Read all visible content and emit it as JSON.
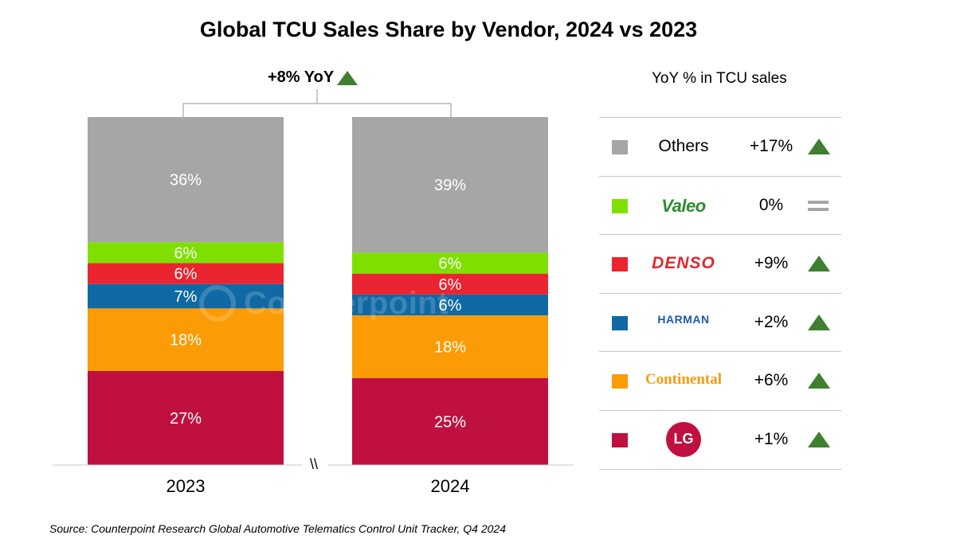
{
  "title": "Global TCU Sales Share by Vendor, 2024 vs 2023",
  "overall_yoy": "+8% YoY",
  "legend_header": "YoY % in TCU sales",
  "break_mark": "\\\\",
  "source": "Source: Counterpoint Research Global Automotive Telematics Control Unit Tracker, Q4 2024",
  "watermark": "Counterpoint",
  "colors": {
    "Others": "#a6a6a6",
    "Valeo": "#7fe000",
    "DENSO": "#ea2430",
    "HARMAN": "#1069a4",
    "Continental": "#fb9b06",
    "LG": "#c0103f",
    "up": "#3f7f2f",
    "flat": "#a6a6a6"
  },
  "legend": [
    {
      "vendor": "Others",
      "name": "Others",
      "yoy": "+17%",
      "trend": "up"
    },
    {
      "vendor": "Valeo",
      "name": "Valeo",
      "yoy": "0%",
      "trend": "flat"
    },
    {
      "vendor": "DENSO",
      "name": "DENSO",
      "yoy": "+9%",
      "trend": "up"
    },
    {
      "vendor": "HARMAN",
      "name": "HARMAN",
      "yoy": "+2%",
      "trend": "up"
    },
    {
      "vendor": "Continental",
      "name": "Continental",
      "yoy": "+6%",
      "trend": "up"
    },
    {
      "vendor": "LG",
      "name": "LG",
      "yoy": "+1%",
      "trend": "up"
    }
  ],
  "chart_data": {
    "type": "bar",
    "stacked": true,
    "categories": [
      "2023",
      "2024"
    ],
    "series": [
      {
        "name": "LG",
        "values": [
          27,
          25
        ],
        "labels": [
          "27%",
          "25%"
        ]
      },
      {
        "name": "Continental",
        "values": [
          18,
          18
        ],
        "labels": [
          "18%",
          "18%"
        ]
      },
      {
        "name": "HARMAN",
        "values": [
          7,
          6
        ],
        "labels": [
          "7%",
          "6%"
        ]
      },
      {
        "name": "DENSO",
        "values": [
          6,
          6
        ],
        "labels": [
          "6%",
          "6%"
        ]
      },
      {
        "name": "Valeo",
        "values": [
          6,
          6
        ],
        "labels": [
          "6%",
          "6%"
        ]
      },
      {
        "name": "Others",
        "values": [
          36,
          39
        ],
        "labels": [
          "36%",
          "39%"
        ]
      }
    ],
    "ylim": [
      0,
      100
    ]
  }
}
